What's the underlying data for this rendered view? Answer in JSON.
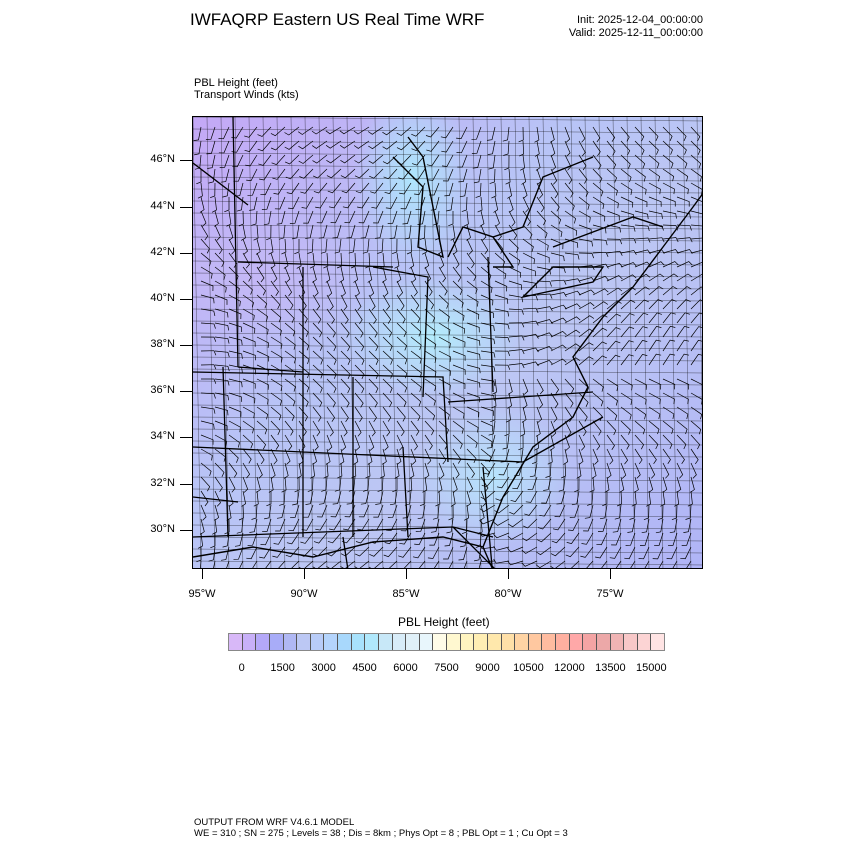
{
  "header": {
    "title": "IWFAQRP Eastern US Real Time WRF",
    "init": "Init: 2025-12-04_00:00:00",
    "valid": "Valid: 2025-12-11_00:00:00"
  },
  "fields": {
    "field1": "PBL Height   (feet)",
    "field2": "Transport Winds   (kts)"
  },
  "map": {
    "lat_labels": [
      "46°N",
      "44°N",
      "42°N",
      "40°N",
      "38°N",
      "36°N",
      "34°N",
      "32°N",
      "30°N"
    ],
    "lon_labels": [
      "95°W",
      "90°W",
      "85°W",
      "80°W",
      "75°W"
    ]
  },
  "colorbar": {
    "title": "PBL Height  (feet)",
    "labels": [
      "0",
      "1500",
      "3000",
      "4500",
      "6000",
      "7500",
      "9000",
      "10500",
      "12000",
      "13500",
      "15000"
    ],
    "colors": [
      "#d8b8f8",
      "#c8b0f8",
      "#b4a8f8",
      "#a8acf8",
      "#b0b8f4",
      "#bcc8f4",
      "#b8ccf8",
      "#b4d4fc",
      "#a8d8fc",
      "#a8e2fc",
      "#b0e8fc",
      "#c8e8f8",
      "#d8ecf8",
      "#e0f0f8",
      "#e8f6fc",
      "#fffce8",
      "#fff8d0",
      "#fff4c0",
      "#ffeeb4",
      "#ffe8ac",
      "#ffe0a8",
      "#ffd4a4",
      "#ffc8a0",
      "#ffbca0",
      "#ffb0a0",
      "#ffa8a8",
      "#f4a4a4",
      "#eca8a8",
      "#f0b4b4",
      "#f8c8c8",
      "#fcd4d4",
      "#ffe4e4"
    ]
  },
  "footer": {
    "line1": "OUTPUT FROM WRF V4.6.1 MODEL",
    "line2": "WE = 310 ; SN = 275 ; Levels = 38 ; Dis = 8km ; Phys Opt = 8 ; PBL Opt = 1 ; Cu Opt = 3"
  }
}
